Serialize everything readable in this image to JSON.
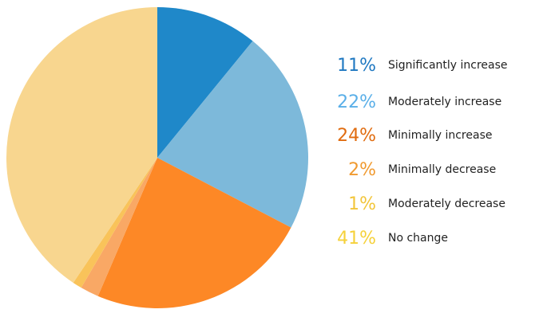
{
  "chart_data": {
    "type": "pie",
    "categories": [
      "Significantly increase",
      "Moderately increase",
      "Minimally increase",
      "Minimally decrease",
      "Moderately decrease",
      "No change"
    ],
    "values": [
      11,
      22,
      24,
      2,
      1,
      41
    ],
    "value_labels": [
      "11%",
      "22%",
      "24%",
      "2%",
      "1%",
      "41%"
    ],
    "colors": [
      "#1f88c9",
      "#7db9da",
      "#fd8826",
      "#f9a865",
      "#f9c35a",
      "#f8d68f"
    ],
    "label_colors": [
      "#1f78c1",
      "#5aafe8",
      "#e06c10",
      "#f09a30",
      "#f2c53a",
      "#f5d13a"
    ],
    "legend": "right"
  }
}
